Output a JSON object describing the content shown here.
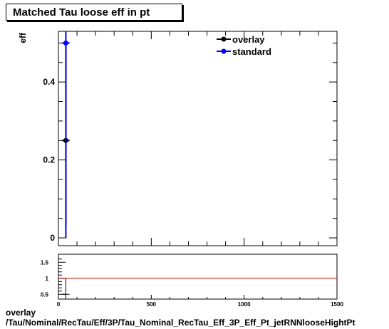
{
  "title": "Matched Tau loose eff in pt",
  "footer": {
    "line1": "overlay",
    "line2": "/Tau/Nominal/RecTau/Eff/3P/Tau_Nominal_RecTau_Eff_3P_Eff_Pt_jetRNNlooseHightPt"
  },
  "colors": {
    "overlay": "#000000",
    "standard": "#0000ff",
    "ratio_line": "#cc0000"
  },
  "chart_data": [
    {
      "type": "scatter",
      "title": "Matched Tau loose eff in pt",
      "ylabel": "eff",
      "xlabel": "",
      "xlim": [
        0,
        1500
      ],
      "ylim": [
        -0.02,
        0.53
      ],
      "yticks": [
        0,
        0.2,
        0.4
      ],
      "ytick_labels": [
        "0",
        "0.2",
        "0.4"
      ],
      "grid": false,
      "legend_position": "top-right",
      "series": [
        {
          "name": "overlay",
          "color": "#000000",
          "x": [
            40
          ],
          "y": [
            0.25
          ],
          "xerr": [
            20
          ],
          "yerr_low": [
            0.22
          ],
          "yerr_high": [
            0.25
          ]
        },
        {
          "name": "standard",
          "color": "#0000ff",
          "x": [
            40
          ],
          "y": [
            0.5
          ],
          "xerr": [
            20
          ],
          "yerr_low": [
            0.5
          ],
          "yerr_high": [
            0.03
          ]
        }
      ]
    },
    {
      "type": "line",
      "xlim": [
        0,
        1500
      ],
      "ylim": [
        0.35,
        1.75
      ],
      "xticks": [
        0,
        500,
        1000,
        1500
      ],
      "xtick_labels": [
        "0",
        "500",
        "1000",
        "1500"
      ],
      "yticks": [
        0.5,
        1,
        1.5
      ],
      "ytick_labels": [
        "0.5",
        "1",
        "1.5"
      ],
      "reference_line": 1,
      "series": [
        {
          "x": [
            40
          ],
          "y": [
            0.5
          ],
          "xerr": [
            20
          ],
          "yerr_low": [
            0.2
          ],
          "yerr_high": [
            0
          ]
        }
      ]
    }
  ]
}
